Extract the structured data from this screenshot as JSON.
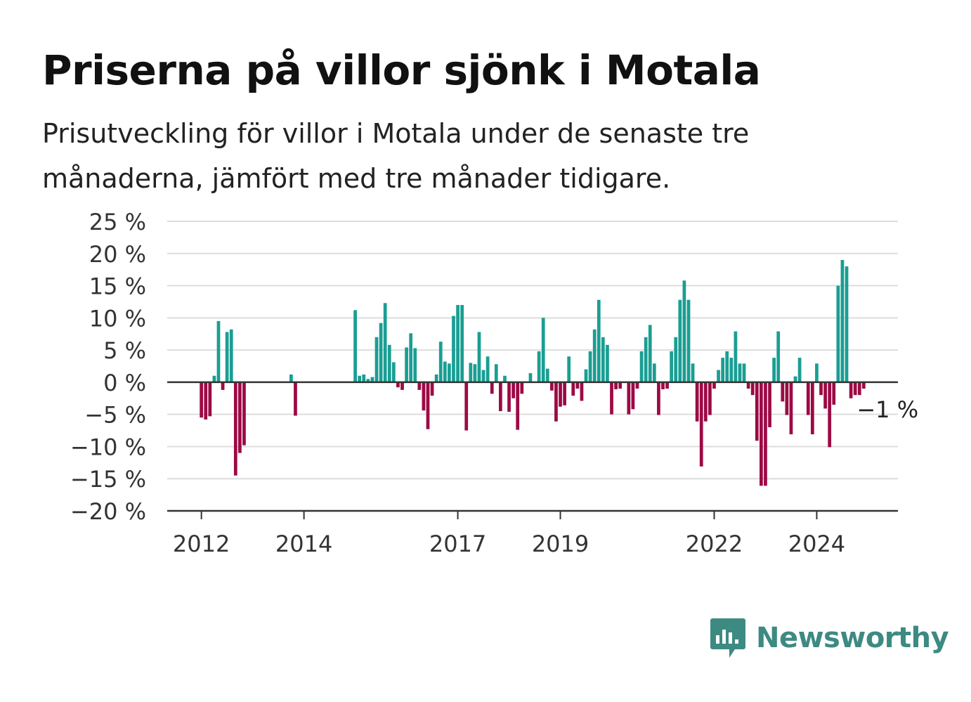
{
  "title": "Priserna på villor sjönk i Motala",
  "subtitle": "Prisutveckling för villor i Motala under de senaste tre månaderna, jämfört med tre månader tidigare.",
  "brand": {
    "name": "Newsworthy",
    "icon": "newsworthy-logo-icon",
    "color": "#3d8a82"
  },
  "chart_data": {
    "type": "bar",
    "ylim": [
      -20,
      25
    ],
    "y_ticks": [
      {
        "value": 25,
        "label": "25 %"
      },
      {
        "value": 20,
        "label": "20 %"
      },
      {
        "value": 15,
        "label": "15 %"
      },
      {
        "value": 10,
        "label": "10 %"
      },
      {
        "value": 5,
        "label": "5 %"
      },
      {
        "value": 0,
        "label": "0 %"
      },
      {
        "value": -5,
        "label": "−5 %"
      },
      {
        "value": -10,
        "label": "−10 %"
      },
      {
        "value": -15,
        "label": "−15 %"
      },
      {
        "value": -20,
        "label": "−20 %"
      }
    ],
    "x_ticks": [
      {
        "date": "2012-01",
        "label": "2012"
      },
      {
        "date": "2014-01",
        "label": "2014"
      },
      {
        "date": "2017-01",
        "label": "2017"
      },
      {
        "date": "2019-01",
        "label": "2019"
      },
      {
        "date": "2022-01",
        "label": "2022"
      },
      {
        "date": "2024-01",
        "label": "2024"
      }
    ],
    "x_range": [
      "2011-05",
      "2025-08"
    ],
    "colors": {
      "positive": "#1a9e93",
      "negative": "#9c0a45",
      "grid": "#dddddd",
      "axis": "#333333"
    },
    "grid": true,
    "annotation": {
      "date": "2024-12",
      "value": -1,
      "label": "−1 %"
    },
    "series": [
      {
        "date": "2012-01",
        "value": -5.5
      },
      {
        "date": "2012-02",
        "value": -5.8
      },
      {
        "date": "2012-03",
        "value": -5.3
      },
      {
        "date": "2012-04",
        "value": 1
      },
      {
        "date": "2012-05",
        "value": 9.5
      },
      {
        "date": "2012-06",
        "value": -1.2
      },
      {
        "date": "2012-07",
        "value": 7.8
      },
      {
        "date": "2012-08",
        "value": 8.2
      },
      {
        "date": "2012-09",
        "value": -14.5
      },
      {
        "date": "2012-10",
        "value": -11
      },
      {
        "date": "2012-11",
        "value": -9.8
      },
      {
        "date": "2013-10",
        "value": 1.2
      },
      {
        "date": "2013-11",
        "value": -5.2
      },
      {
        "date": "2015-01",
        "value": 11.2
      },
      {
        "date": "2015-02",
        "value": 1
      },
      {
        "date": "2015-03",
        "value": 1.2
      },
      {
        "date": "2015-04",
        "value": 0.5
      },
      {
        "date": "2015-05",
        "value": 0.8
      },
      {
        "date": "2015-06",
        "value": 7
      },
      {
        "date": "2015-07",
        "value": 9.2
      },
      {
        "date": "2015-08",
        "value": 12.3
      },
      {
        "date": "2015-09",
        "value": 5.8
      },
      {
        "date": "2015-10",
        "value": 3.1
      },
      {
        "date": "2015-11",
        "value": -0.8
      },
      {
        "date": "2015-12",
        "value": -1.2
      },
      {
        "date": "2016-01",
        "value": 5.4
      },
      {
        "date": "2016-02",
        "value": 7.6
      },
      {
        "date": "2016-03",
        "value": 5.3
      },
      {
        "date": "2016-04",
        "value": -1.2
      },
      {
        "date": "2016-05",
        "value": -4.4
      },
      {
        "date": "2016-06",
        "value": -7.3
      },
      {
        "date": "2016-07",
        "value": -2.1
      },
      {
        "date": "2016-08",
        "value": 1.2
      },
      {
        "date": "2016-09",
        "value": 6.3
      },
      {
        "date": "2016-10",
        "value": 3.2
      },
      {
        "date": "2016-11",
        "value": 2.9
      },
      {
        "date": "2016-12",
        "value": 10.3
      },
      {
        "date": "2017-01",
        "value": 12
      },
      {
        "date": "2017-02",
        "value": 12
      },
      {
        "date": "2017-03",
        "value": -7.5
      },
      {
        "date": "2017-04",
        "value": 3
      },
      {
        "date": "2017-05",
        "value": 2.8
      },
      {
        "date": "2017-06",
        "value": 7.8
      },
      {
        "date": "2017-07",
        "value": 1.9
      },
      {
        "date": "2017-08",
        "value": 4
      },
      {
        "date": "2017-09",
        "value": -1.8
      },
      {
        "date": "2017-10",
        "value": 2.8
      },
      {
        "date": "2017-11",
        "value": -4.5
      },
      {
        "date": "2017-12",
        "value": 1
      },
      {
        "date": "2018-01",
        "value": -4.6
      },
      {
        "date": "2018-02",
        "value": -2.5
      },
      {
        "date": "2018-03",
        "value": -7.4
      },
      {
        "date": "2018-04",
        "value": -1.8
      },
      {
        "date": "2018-06",
        "value": 1.4
      },
      {
        "date": "2018-08",
        "value": 4.8
      },
      {
        "date": "2018-09",
        "value": 10
      },
      {
        "date": "2018-10",
        "value": 2.1
      },
      {
        "date": "2018-11",
        "value": -1.3
      },
      {
        "date": "2018-12",
        "value": -6.1
      },
      {
        "date": "2019-01",
        "value": -3.8
      },
      {
        "date": "2019-02",
        "value": -3.6
      },
      {
        "date": "2019-03",
        "value": 4
      },
      {
        "date": "2019-04",
        "value": -2.1
      },
      {
        "date": "2019-05",
        "value": -1
      },
      {
        "date": "2019-06",
        "value": -2.9
      },
      {
        "date": "2019-07",
        "value": 2
      },
      {
        "date": "2019-08",
        "value": 4.8
      },
      {
        "date": "2019-09",
        "value": 8.2
      },
      {
        "date": "2019-10",
        "value": 12.8
      },
      {
        "date": "2019-11",
        "value": 7
      },
      {
        "date": "2019-12",
        "value": 5.8
      },
      {
        "date": "2020-01",
        "value": -5
      },
      {
        "date": "2020-02",
        "value": -1.1
      },
      {
        "date": "2020-03",
        "value": -1
      },
      {
        "date": "2020-05",
        "value": -5
      },
      {
        "date": "2020-06",
        "value": -4.2
      },
      {
        "date": "2020-07",
        "value": -1
      },
      {
        "date": "2020-08",
        "value": 4.8
      },
      {
        "date": "2020-09",
        "value": 7
      },
      {
        "date": "2020-10",
        "value": 8.9
      },
      {
        "date": "2020-11",
        "value": 2.9
      },
      {
        "date": "2020-12",
        "value": -5.1
      },
      {
        "date": "2021-01",
        "value": -1.1
      },
      {
        "date": "2021-02",
        "value": -1
      },
      {
        "date": "2021-03",
        "value": 4.8
      },
      {
        "date": "2021-04",
        "value": 7
      },
      {
        "date": "2021-05",
        "value": 12.8
      },
      {
        "date": "2021-06",
        "value": 15.8
      },
      {
        "date": "2021-07",
        "value": 12.8
      },
      {
        "date": "2021-08",
        "value": 2.9
      },
      {
        "date": "2021-09",
        "value": -6.1
      },
      {
        "date": "2021-10",
        "value": -13.1
      },
      {
        "date": "2021-11",
        "value": -6.1
      },
      {
        "date": "2021-12",
        "value": -5.1
      },
      {
        "date": "2022-01",
        "value": -1
      },
      {
        "date": "2022-02",
        "value": 1.9
      },
      {
        "date": "2022-03",
        "value": 3.8
      },
      {
        "date": "2022-04",
        "value": 4.8
      },
      {
        "date": "2022-05",
        "value": 3.8
      },
      {
        "date": "2022-06",
        "value": 7.9
      },
      {
        "date": "2022-07",
        "value": 2.9
      },
      {
        "date": "2022-08",
        "value": 2.9
      },
      {
        "date": "2022-09",
        "value": -1
      },
      {
        "date": "2022-10",
        "value": -2
      },
      {
        "date": "2022-11",
        "value": -9.1
      },
      {
        "date": "2022-12",
        "value": -16.1
      },
      {
        "date": "2023-01",
        "value": -16.1
      },
      {
        "date": "2023-02",
        "value": -7
      },
      {
        "date": "2023-03",
        "value": 3.8
      },
      {
        "date": "2023-04",
        "value": 7.9
      },
      {
        "date": "2023-05",
        "value": -3
      },
      {
        "date": "2023-06",
        "value": -5.1
      },
      {
        "date": "2023-07",
        "value": -8.1
      },
      {
        "date": "2023-08",
        "value": 0.9
      },
      {
        "date": "2023-09",
        "value": 3.8
      },
      {
        "date": "2023-11",
        "value": -5.1
      },
      {
        "date": "2023-12",
        "value": -8.1
      },
      {
        "date": "2024-01",
        "value": 2.9
      },
      {
        "date": "2024-02",
        "value": -2
      },
      {
        "date": "2024-03",
        "value": -4.1
      },
      {
        "date": "2024-04",
        "value": -10.1
      },
      {
        "date": "2024-05",
        "value": -3.5
      },
      {
        "date": "2024-06",
        "value": 15
      },
      {
        "date": "2024-07",
        "value": 19
      },
      {
        "date": "2024-08",
        "value": 18
      },
      {
        "date": "2024-09",
        "value": -2.5
      },
      {
        "date": "2024-10",
        "value": -2
      },
      {
        "date": "2024-11",
        "value": -2
      },
      {
        "date": "2024-12",
        "value": -1
      }
    ]
  }
}
